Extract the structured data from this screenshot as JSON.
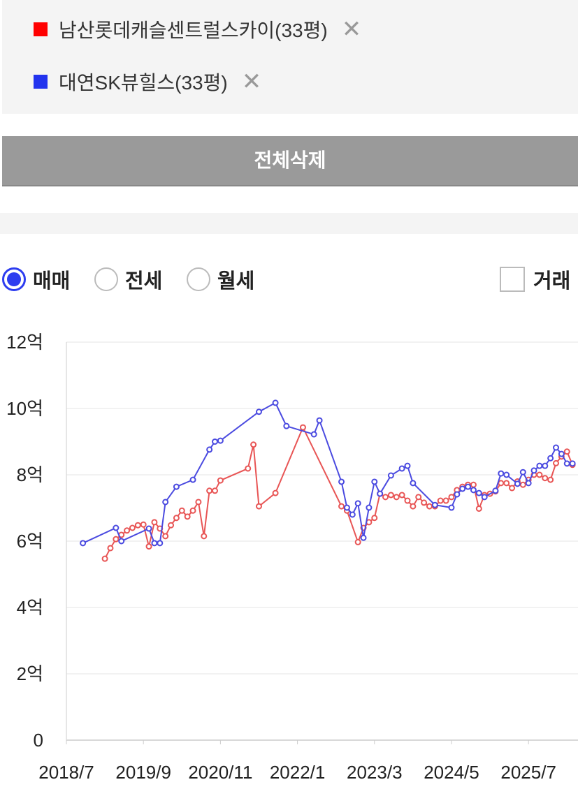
{
  "ui": {
    "button": "전체삭제",
    "options": [
      "매매",
      "전세",
      "월세"
    ],
    "checkbox": "거래"
  },
  "chart_data": {
    "type": "line",
    "xlim": [
      "2018/7",
      "2026/4"
    ],
    "xticks": [
      "2018/7",
      "2019/9",
      "2020/11",
      "2022/1",
      "2023/3",
      "2024/5",
      "2025/7"
    ],
    "ylim": [
      0,
      12
    ],
    "yticks": [
      0,
      {
        "value": 2,
        "label": "2억"
      },
      {
        "value": 4,
        "label": "4억"
      },
      {
        "value": 6,
        "label": "6억"
      },
      {
        "value": 8,
        "label": "8억"
      },
      {
        "value": 10,
        "label": "10억"
      },
      {
        "value": 12,
        "label": "12억"
      }
    ],
    "grid": true,
    "series": [
      {
        "name": "남산롯데캐슬센트럴스카이(33평)",
        "color": "#ff0000",
        "line_color": "#e85555",
        "x": [
          "2019/2",
          "2019/3",
          "2019/4",
          "2019/5",
          "2019/6",
          "2019/7",
          "2019/8",
          "2019/9",
          "2019/10",
          "2019/11",
          "2019/12",
          "2020/1",
          "2020/2",
          "2020/3",
          "2020/4",
          "2020/5",
          "2020/6",
          "2020/7",
          "2020/8",
          "2020/9",
          "2020/10",
          "2020/11",
          "2021/4",
          "2021/5",
          "2021/6",
          "2021/9",
          "2022/2",
          "2022/9",
          "2022/10",
          "2022/12",
          "2023/1",
          "2023/2",
          "2023/3",
          "2023/4",
          "2023/5",
          "2023/6",
          "2023/7",
          "2023/8",
          "2023/9",
          "2023/10",
          "2023/11",
          "2023/12",
          "2024/1",
          "2024/2",
          "2024/3",
          "2024/4",
          "2024/5",
          "2024/6",
          "2024/7",
          "2024/8",
          "2024/9",
          "2024/10",
          "2024/11",
          "2024/12",
          "2025/1",
          "2025/2",
          "2025/3",
          "2025/4",
          "2025/5",
          "2025/6",
          "2025/7",
          "2025/8",
          "2025/9",
          "2025/10",
          "2025/11",
          "2025/12",
          "2026/1",
          "2026/2",
          "2026/3"
        ],
        "values": [
          5.47,
          5.79,
          6.06,
          6.19,
          6.32,
          6.4,
          6.48,
          6.5,
          5.84,
          6.57,
          6.38,
          6.15,
          6.48,
          6.7,
          6.92,
          6.74,
          6.92,
          7.18,
          6.15,
          7.52,
          7.52,
          7.83,
          8.19,
          8.91,
          7.05,
          7.45,
          9.43,
          7.05,
          6.92,
          5.97,
          6.4,
          6.57,
          6.7,
          7.43,
          7.33,
          7.39,
          7.33,
          7.39,
          7.22,
          7.05,
          7.33,
          7.16,
          7.05,
          7.05,
          7.22,
          7.22,
          7.33,
          7.54,
          7.64,
          7.7,
          7.7,
          6.98,
          7.39,
          7.43,
          7.5,
          7.75,
          7.75,
          7.6,
          7.8,
          7.7,
          7.85,
          8.0,
          8.0,
          7.9,
          7.85,
          8.35,
          8.55,
          8.7,
          8.3
        ]
      },
      {
        "name": "대연SK뷰힐스(33평)",
        "color": "#2233ee",
        "line_color": "#4a4ae0",
        "x": [
          "2018/10",
          "2019/4",
          "2019/5",
          "2019/10",
          "2019/11",
          "2019/12",
          "2020/1",
          "2020/3",
          "2020/6",
          "2020/9",
          "2020/10",
          "2020/11",
          "2021/6",
          "2021/9",
          "2021/11",
          "2022/4",
          "2022/5",
          "2022/9",
          "2022/10",
          "2022/11",
          "2022/12",
          "2023/1",
          "2023/2",
          "2023/3",
          "2023/4",
          "2023/6",
          "2023/8",
          "2023/9",
          "2023/10",
          "2024/2",
          "2024/5",
          "2024/6",
          "2024/7",
          "2024/8",
          "2024/9",
          "2024/10",
          "2024/11",
          "2025/1",
          "2025/2",
          "2025/3",
          "2025/5",
          "2025/6",
          "2025/7",
          "2025/8",
          "2025/9",
          "2025/10",
          "2025/11",
          "2025/12",
          "2026/1",
          "2026/2",
          "2026/3"
        ],
        "values": [
          5.94,
          6.4,
          6.0,
          6.38,
          5.94,
          5.94,
          7.18,
          7.64,
          7.85,
          8.76,
          9.0,
          9.03,
          9.9,
          10.17,
          9.47,
          9.22,
          9.64,
          7.79,
          7.01,
          6.8,
          7.14,
          6.1,
          7.01,
          7.79,
          7.43,
          7.98,
          8.19,
          8.27,
          7.75,
          7.09,
          7.01,
          7.41,
          7.58,
          7.64,
          7.54,
          7.45,
          7.33,
          7.52,
          8.04,
          8.0,
          7.73,
          8.08,
          7.75,
          8.13,
          8.27,
          8.27,
          8.5,
          8.82,
          8.63,
          8.34,
          8.34
        ]
      }
    ]
  }
}
